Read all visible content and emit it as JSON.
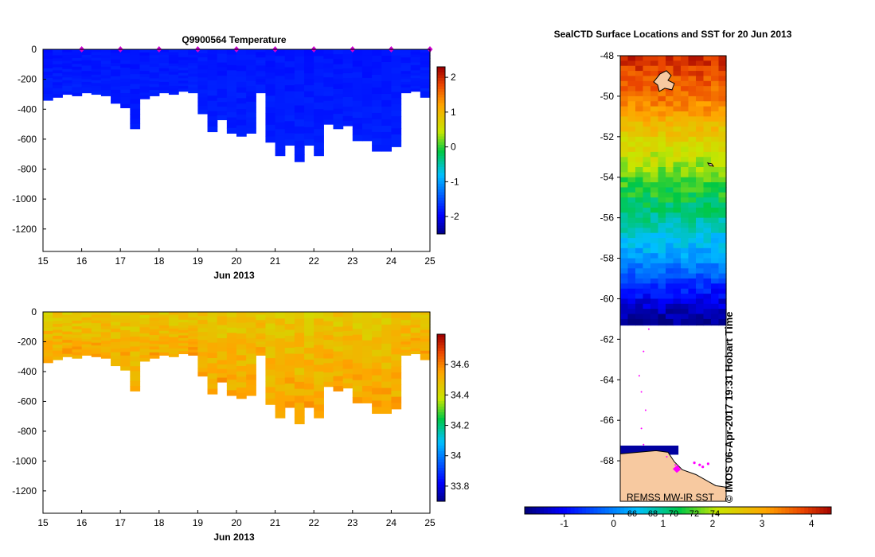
{
  "chart_data": [
    {
      "type": "heatmap",
      "title": "Q9900564  Temperature",
      "xlabel": "Jun 2013",
      "ylabel": "",
      "x_ticks": [
        "15",
        "16",
        "17",
        "18",
        "19",
        "20",
        "21",
        "22",
        "23",
        "24",
        "25"
      ],
      "y_ticks": [
        "0",
        "-200",
        "-400",
        "-600",
        "-800",
        "-1000",
        "-1200"
      ],
      "xlim": [
        15,
        25
      ],
      "ylim": [
        -1350,
        0
      ],
      "colorbar_ticks": [
        "2",
        "1",
        "0",
        "-1",
        "-2"
      ],
      "colorbar_range": [
        -2.5,
        2.3
      ],
      "profile_times": [
        15.0,
        15.25,
        15.5,
        15.75,
        16.0,
        16.25,
        16.5,
        16.75,
        17.0,
        17.25,
        17.5,
        17.75,
        18.0,
        18.25,
        18.5,
        18.75,
        19.0,
        19.25,
        19.5,
        19.75,
        20.0,
        20.25,
        20.5,
        20.75,
        21.0,
        21.25,
        21.5,
        21.75,
        22.0,
        22.25,
        22.5,
        22.75,
        23.0,
        23.25,
        23.5,
        23.75,
        24.0,
        24.25,
        24.5,
        24.75
      ],
      "profile_max_depth": [
        340,
        320,
        300,
        310,
        290,
        300,
        310,
        360,
        390,
        530,
        330,
        310,
        290,
        300,
        280,
        290,
        430,
        550,
        470,
        560,
        580,
        560,
        290,
        620,
        710,
        640,
        750,
        640,
        710,
        500,
        530,
        510,
        610,
        610,
        680,
        680,
        650,
        290,
        280,
        320
      ],
      "surface_value": -1.8,
      "deep_value": -1.75,
      "surface_markers": [
        16,
        17,
        18,
        19,
        20,
        21,
        22,
        23,
        24,
        25
      ]
    },
    {
      "type": "heatmap",
      "title": "",
      "xlabel": "Jun 2013",
      "ylabel": "",
      "x_ticks": [
        "15",
        "16",
        "17",
        "18",
        "19",
        "20",
        "21",
        "22",
        "23",
        "24",
        "25"
      ],
      "y_ticks": [
        "0",
        "-200",
        "-400",
        "-600",
        "-800",
        "-1000",
        "-1200"
      ],
      "xlim": [
        15,
        25
      ],
      "ylim": [
        -1350,
        0
      ],
      "colorbar_ticks": [
        "34.6",
        "34.4",
        "34.2",
        "34",
        "33.8"
      ],
      "colorbar_range": [
        33.7,
        34.8
      ],
      "profile_times": [
        15.0,
        15.25,
        15.5,
        15.75,
        16.0,
        16.25,
        16.5,
        16.75,
        17.0,
        17.25,
        17.5,
        17.75,
        18.0,
        18.25,
        18.5,
        18.75,
        19.0,
        19.25,
        19.5,
        19.75,
        20.0,
        20.25,
        20.5,
        20.75,
        21.0,
        21.25,
        21.5,
        21.75,
        22.0,
        22.25,
        22.5,
        22.75,
        23.0,
        23.25,
        23.5,
        23.75,
        24.0,
        24.25,
        24.5,
        24.75
      ],
      "profile_max_depth": [
        340,
        320,
        300,
        310,
        290,
        300,
        310,
        360,
        390,
        530,
        330,
        310,
        290,
        300,
        280,
        290,
        430,
        550,
        470,
        560,
        580,
        560,
        290,
        620,
        710,
        640,
        750,
        640,
        710,
        500,
        530,
        510,
        610,
        610,
        680,
        680,
        650,
        290,
        280,
        320
      ],
      "surface_value": 34.47,
      "deep_value": 34.55
    },
    {
      "type": "heatmap",
      "title": "SealCTD Surface Locations and SST for 20 Jun 2013",
      "y_ticks": [
        "-48",
        "-50",
        "-52",
        "-54",
        "-56",
        "-58",
        "-60",
        "-62",
        "-64",
        "-66",
        "-68"
      ],
      "ylim": [
        -70,
        -48
      ],
      "colorbar_ticks": [
        "-1",
        "0",
        "1",
        "2",
        "3",
        "4"
      ],
      "colorbar_range": [
        -1.8,
        4.4
      ],
      "colorbar_overlay_ticks": [
        "66",
        "68",
        "70",
        "72",
        "74"
      ],
      "annotations": [
        "REMSS MW-IR SST",
        "© IMOS 06-Apr-2017 19:31 Hobart Time"
      ],
      "sst_by_latitude": [
        {
          "lat": -48,
          "sst": 4.0
        },
        {
          "lat": -50,
          "sst": 3.4
        },
        {
          "lat": -52,
          "sst": 2.4
        },
        {
          "lat": -54,
          "sst": 1.6
        },
        {
          "lat": -56,
          "sst": 0.9
        },
        {
          "lat": -58,
          "sst": 0.1
        },
        {
          "lat": -60,
          "sst": -1.2
        },
        {
          "lat": -61,
          "sst": -1.7
        }
      ],
      "sea_ice_edge_lat": -61.3,
      "land_top_lat": -67.5
    }
  ]
}
